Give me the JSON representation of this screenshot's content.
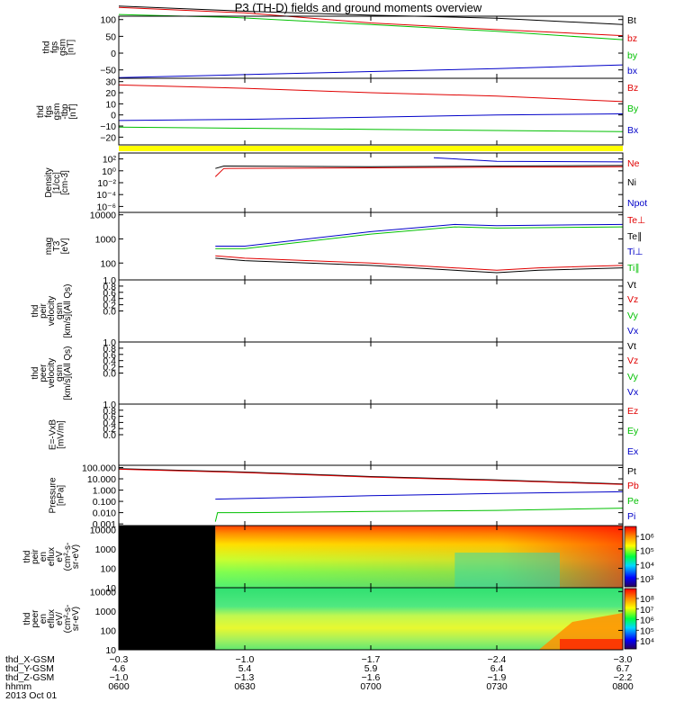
{
  "title": "P3 (TH-D) fields and ground moments overview",
  "colors": {
    "black": "#000000",
    "red": "#e00000",
    "green": "#00c000",
    "blue": "#0000c8",
    "yellow": "#ffff00"
  },
  "chart_data": [
    {
      "type": "line",
      "panel": "fgs_gsm",
      "ylabel": [
        "thd",
        "fgs",
        "gsm",
        "[nT]"
      ],
      "ylim": [
        -75,
        110
      ],
      "yticks": [
        {
          "v": 100,
          "t": "100"
        },
        {
          "v": 50,
          "t": "50"
        },
        {
          "v": 0,
          "t": "0"
        },
        {
          "v": -50,
          "t": "−50"
        }
      ],
      "legend": [
        {
          "t": "Bt",
          "c": "black"
        },
        {
          "t": "bz",
          "c": "red"
        },
        {
          "t": "by",
          "c": "green"
        },
        {
          "t": "bx",
          "c": "blue"
        }
      ],
      "series": [
        {
          "name": "Bt",
          "c": "black",
          "x": [
            600,
            632,
            700,
            730,
            800
          ],
          "y": [
            140,
            124,
            113,
            104,
            85
          ]
        },
        {
          "name": "bz",
          "c": "red",
          "x": [
            600,
            630,
            700,
            730,
            800
          ],
          "y": [
            136,
            120,
            90,
            70,
            52
          ]
        },
        {
          "name": "by",
          "c": "green",
          "x": [
            600,
            628,
            700,
            730,
            800
          ],
          "y": [
            115,
            106,
            85,
            65,
            40
          ]
        },
        {
          "name": "bx",
          "c": "blue",
          "x": [
            600,
            630,
            700,
            730,
            800
          ],
          "y": [
            -73,
            -64,
            -55,
            -46,
            -35
          ]
        }
      ]
    },
    {
      "type": "line",
      "panel": "fgs_gse_tbp",
      "ylabel": [
        "thd",
        "fgs",
        "gsm",
        "-tbp",
        "[nT]"
      ],
      "ylim": [
        -27,
        33
      ],
      "yticks": [
        {
          "v": 30,
          "t": "30"
        },
        {
          "v": 20,
          "t": "20"
        },
        {
          "v": 10,
          "t": "10"
        },
        {
          "v": 0,
          "t": "0"
        },
        {
          "v": -10,
          "t": "−10"
        },
        {
          "v": -20,
          "t": "−20"
        }
      ],
      "legend": [
        {
          "t": "Bz",
          "c": "red"
        },
        {
          "t": "By",
          "c": "green"
        },
        {
          "t": "Bx",
          "c": "blue"
        }
      ],
      "series": [
        {
          "name": "Bz",
          "c": "red",
          "x": [
            600,
            630,
            700,
            730,
            800
          ],
          "y": [
            27,
            24,
            20,
            17,
            12
          ]
        },
        {
          "name": "By",
          "c": "green",
          "x": [
            600,
            630,
            700,
            730,
            800
          ],
          "y": [
            -11,
            -12,
            -13,
            -14,
            -15
          ]
        },
        {
          "name": "Bx",
          "c": "blue",
          "x": [
            600,
            630,
            700,
            730,
            800
          ],
          "y": [
            -5,
            -4,
            -2,
            0,
            1
          ]
        }
      ]
    },
    {
      "type": "line",
      "panel": "density",
      "yscale": "log",
      "ylabel": [
        "Density",
        "[1/cc]",
        "[cm-3]"
      ],
      "ylim": [
        -7,
        3
      ],
      "yticks": [
        {
          "v": 2,
          "t": "10²"
        },
        {
          "v": 0,
          "t": "10⁰"
        },
        {
          "v": -2,
          "t": "10⁻²"
        },
        {
          "v": -4,
          "t": "10⁻⁴"
        },
        {
          "v": -6,
          "t": "10⁻⁶"
        }
      ],
      "legend": [
        {
          "t": "Ne",
          "c": "red"
        },
        {
          "t": "Ni",
          "c": "black"
        },
        {
          "t": "Npot",
          "c": "blue"
        }
      ],
      "series": [
        {
          "name": "Ne",
          "c": "red",
          "x": [
            623,
            625,
            700,
            730,
            800
          ],
          "y": [
            -1,
            0.4,
            0.5,
            0.6,
            0.7
          ]
        },
        {
          "name": "Ni",
          "c": "black",
          "x": [
            623,
            625,
            700,
            730,
            800
          ],
          "y": [
            0.4,
            0.8,
            0.7,
            0.8,
            0.9
          ]
        },
        {
          "name": "Npot",
          "c": "blue",
          "x": [
            715,
            730,
            800
          ],
          "y": [
            2.2,
            1.6,
            1.5
          ]
        }
      ]
    },
    {
      "type": "line",
      "panel": "temperature",
      "yscale": "log",
      "ylabel": [
        "mag",
        "T3",
        "[eV]"
      ],
      "ylim": [
        1.3,
        4.1
      ],
      "yticks": [
        {
          "v": 4,
          "t": "10000"
        },
        {
          "v": 3,
          "t": "1000"
        },
        {
          "v": 2,
          "t": "100"
        }
      ],
      "legend": [
        {
          "t": "Te⊥",
          "c": "red"
        },
        {
          "t": "Te∥",
          "c": "black"
        },
        {
          "t": "Ti⊥",
          "c": "blue"
        },
        {
          "t": "Ti∥",
          "c": "green"
        }
      ],
      "series": [
        {
          "name": "Ti⊥",
          "c": "blue",
          "x": [
            623,
            630,
            700,
            720,
            730,
            800
          ],
          "y": [
            2.7,
            2.7,
            3.3,
            3.6,
            3.55,
            3.6
          ]
        },
        {
          "name": "Ti∥",
          "c": "green",
          "x": [
            623,
            630,
            700,
            720,
            730,
            800
          ],
          "y": [
            2.6,
            2.6,
            3.2,
            3.5,
            3.45,
            3.5
          ]
        },
        {
          "name": "Te⊥",
          "c": "red",
          "x": [
            623,
            630,
            700,
            730,
            740,
            800
          ],
          "y": [
            2.3,
            2.2,
            2.0,
            1.7,
            1.8,
            1.9
          ]
        },
        {
          "name": "Te∥",
          "c": "black",
          "x": [
            623,
            630,
            700,
            730,
            740,
            800
          ],
          "y": [
            2.2,
            2.1,
            1.9,
            1.6,
            1.7,
            1.8
          ]
        }
      ]
    },
    {
      "type": "line",
      "panel": "peir_velocity",
      "ylabel": [
        "thd",
        "peir",
        "velocity",
        "gsm",
        "[km/s](All Qs)"
      ],
      "ylim": [
        -1,
        1
      ],
      "yticks": [
        {
          "v": 1,
          "t": "1.0"
        },
        {
          "v": 0.8,
          "t": "0.8"
        },
        {
          "v": 0.6,
          "t": "0.6"
        },
        {
          "v": 0.4,
          "t": "0.4"
        },
        {
          "v": 0.2,
          "t": "0.2"
        },
        {
          "v": 0,
          "t": "0.0"
        }
      ],
      "legend": [
        {
          "t": "Vt",
          "c": "black"
        },
        {
          "t": "Vz",
          "c": "red"
        },
        {
          "t": "Vy",
          "c": "green"
        },
        {
          "t": "Vx",
          "c": "blue"
        }
      ],
      "series": []
    },
    {
      "type": "line",
      "panel": "peer_velocity",
      "ylabel": [
        "thd",
        "peer",
        "velocity",
        "gsm",
        "[km/s](All Qs)"
      ],
      "ylim": [
        -1,
        1
      ],
      "yticks": [
        {
          "v": 1,
          "t": "1.0"
        },
        {
          "v": 0.8,
          "t": "0.8"
        },
        {
          "v": 0.6,
          "t": "0.6"
        },
        {
          "v": 0.4,
          "t": "0.4"
        },
        {
          "v": 0.2,
          "t": "0.2"
        },
        {
          "v": 0,
          "t": "0.0"
        }
      ],
      "legend": [
        {
          "t": "Vt",
          "c": "black"
        },
        {
          "t": "Vz",
          "c": "red"
        },
        {
          "t": "Vy",
          "c": "green"
        },
        {
          "t": "Vx",
          "c": "blue"
        }
      ],
      "series": []
    },
    {
      "type": "line",
      "panel": "efield",
      "ylabel": [
        "E=-VxB",
        "[mV/m]"
      ],
      "ylim": [
        -1,
        1
      ],
      "yticks": [
        {
          "v": 1,
          "t": "1.0"
        },
        {
          "v": 0.8,
          "t": "0.8"
        },
        {
          "v": 0.6,
          "t": "0.6"
        },
        {
          "v": 0.4,
          "t": "0.4"
        },
        {
          "v": 0.2,
          "t": "0.2"
        },
        {
          "v": 0,
          "t": "0.0"
        }
      ],
      "legend": [
        {
          "t": "Ez",
          "c": "red"
        },
        {
          "t": "Ey",
          "c": "green"
        },
        {
          "t": "Ex",
          "c": "blue"
        }
      ],
      "series": []
    },
    {
      "type": "line",
      "panel": "pressure",
      "yscale": "log",
      "ylabel": [
        "Pressure",
        "[nPa]"
      ],
      "ylim": [
        -3.15,
        2.2
      ],
      "yticks": [
        {
          "v": 2,
          "t": "100.000"
        },
        {
          "v": 1,
          "t": "10.000"
        },
        {
          "v": 0,
          "t": "1.000"
        },
        {
          "v": -1,
          "t": "0.100"
        },
        {
          "v": -2,
          "t": "0.010"
        },
        {
          "v": -3,
          "t": "0.001"
        }
      ],
      "legend": [
        {
          "t": "Pt",
          "c": "black"
        },
        {
          "t": "Pb",
          "c": "red"
        },
        {
          "t": "Pe",
          "c": "green"
        },
        {
          "t": "Pi",
          "c": "blue"
        }
      ],
      "series": [
        {
          "name": "Pt",
          "c": "black",
          "x": [
            600,
            630,
            700,
            730,
            800
          ],
          "y": [
            1.9,
            1.6,
            1.2,
            0.9,
            0.55
          ]
        },
        {
          "name": "Pb",
          "c": "red",
          "x": [
            600,
            630,
            700,
            730,
            800
          ],
          "y": [
            1.85,
            1.55,
            1.15,
            0.85,
            0.5
          ]
        },
        {
          "name": "Pi",
          "c": "blue",
          "x": [
            623,
            630,
            700,
            730,
            800
          ],
          "y": [
            -0.8,
            -0.75,
            -0.5,
            -0.3,
            -0.15
          ]
        },
        {
          "name": "Pe",
          "c": "green",
          "x": [
            623,
            623.5,
            630,
            700,
            730,
            800
          ],
          "y": [
            -2.8,
            -2.0,
            -2.0,
            -1.9,
            -1.8,
            -1.6
          ]
        }
      ]
    },
    {
      "type": "heatmap",
      "panel": "peir_en_eflux",
      "ylabel": [
        "thd",
        "peir",
        "en",
        "eflux",
        "eV",
        "(cm²-s-",
        "sr-eV)"
      ],
      "ylim": [
        1,
        4.2
      ],
      "yscale": "log",
      "yticks": [
        {
          "v": 4,
          "t": "10000"
        },
        {
          "v": 3,
          "t": "1000"
        },
        {
          "v": 2,
          "t": "100"
        },
        {
          "v": 1,
          "t": "10"
        }
      ],
      "colorbar_ticks": [
        "10⁶",
        "10⁵",
        "10⁴",
        "10³"
      ],
      "no_data_until": 623
    },
    {
      "type": "heatmap",
      "panel": "peer_en_eflux",
      "ylabel": [
        "thd",
        "peer",
        "en",
        "eflux",
        "eV/",
        "(cm²-s-",
        "sr-eV)"
      ],
      "ylim": [
        1,
        4.2
      ],
      "yscale": "log",
      "yticks": [
        {
          "v": 4,
          "t": "10000"
        },
        {
          "v": 3,
          "t": "1000"
        },
        {
          "v": 2,
          "t": "100"
        },
        {
          "v": 1,
          "t": "10"
        }
      ],
      "colorbar_ticks": [
        "10⁸",
        "10⁷",
        "10⁶",
        "10⁵",
        "10⁴"
      ],
      "no_data_until": 623
    }
  ],
  "xaxis": {
    "row_labels": [
      "thd_X-GSM",
      "thd_Y-GSM",
      "thd_Z-GSM",
      "hhmm",
      "2013 Oct 01"
    ],
    "ticks": [
      {
        "x": 600,
        "X": "−0.3",
        "Y": "4.6",
        "Z": "−1.0",
        "T": "0600"
      },
      {
        "x": 630,
        "X": "−1.0",
        "Y": "5.4",
        "Z": "−1.3",
        "T": "0630"
      },
      {
        "x": 700,
        "X": "−1.7",
        "Y": "5.9",
        "Z": "−1.6",
        "T": "0700"
      },
      {
        "x": 730,
        "X": "−2.4",
        "Y": "6.4",
        "Z": "−1.9",
        "T": "0730"
      },
      {
        "x": 800,
        "X": "−3.0",
        "Y": "6.7",
        "Z": "−2.2",
        "T": "0800"
      }
    ]
  }
}
